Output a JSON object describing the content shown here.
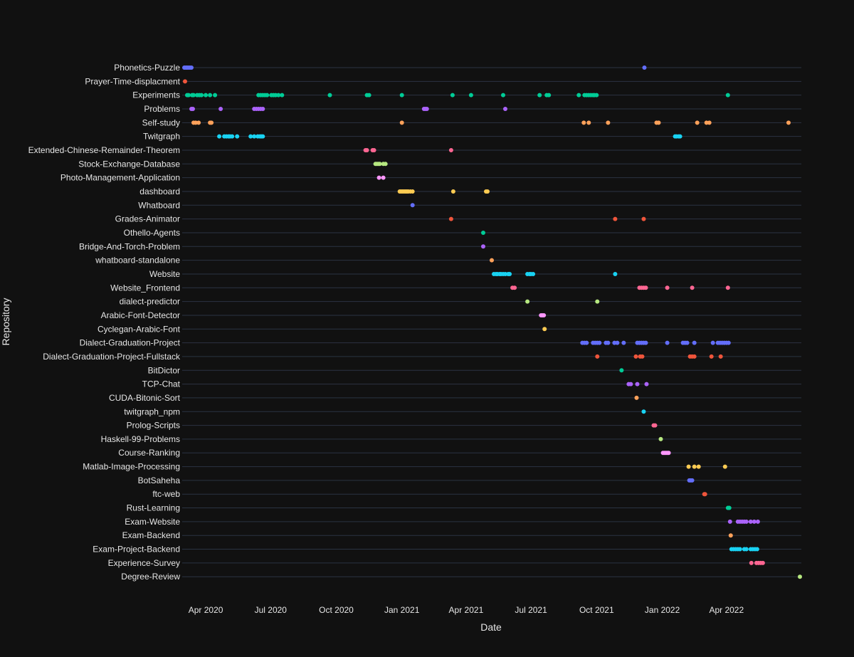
{
  "chart_data": {
    "type": "scatter",
    "xlabel": "Date",
    "ylabel": "Repository",
    "xlim": [
      "2020-02-28",
      "2022-07-15"
    ],
    "x_ticks": [
      {
        "date": "2020-04-01",
        "label": "Apr 2020"
      },
      {
        "date": "2020-07-01",
        "label": "Jul 2020"
      },
      {
        "date": "2020-10-01",
        "label": "Oct 2020"
      },
      {
        "date": "2021-01-01",
        "label": "Jan 2021"
      },
      {
        "date": "2021-04-01",
        "label": "Apr 2021"
      },
      {
        "date": "2021-07-01",
        "label": "Jul 2021"
      },
      {
        "date": "2021-10-01",
        "label": "Oct 2021"
      },
      {
        "date": "2022-01-01",
        "label": "Jan 2022"
      },
      {
        "date": "2022-04-01",
        "label": "Apr 2022"
      }
    ],
    "grid": true,
    "legend": "none",
    "palette": [
      "#636efa",
      "#ef553b",
      "#00cc96",
      "#ab63fa",
      "#ffa15a",
      "#19d3f3",
      "#ff6692",
      "#b6e880",
      "#ff97ff",
      "#fecb52"
    ],
    "series": [
      {
        "name": "Phonetics-Puzzle",
        "x": [
          "2020-03-02",
          "2020-03-03",
          "2020-03-05",
          "2020-03-06",
          "2020-03-08",
          "2020-03-10",
          "2020-03-12",
          "2021-12-07"
        ]
      },
      {
        "name": "Prayer-Time-displacment",
        "x": [
          "2020-03-03"
        ]
      },
      {
        "name": "Experiments",
        "x": [
          "2020-03-06",
          "2020-03-08",
          "2020-03-13",
          "2020-03-15",
          "2020-03-20",
          "2020-03-23",
          "2020-03-26",
          "2020-04-01",
          "2020-04-07",
          "2020-04-14",
          "2020-06-14",
          "2020-06-17",
          "2020-06-20",
          "2020-06-23",
          "2020-06-26",
          "2020-07-02",
          "2020-07-05",
          "2020-07-08",
          "2020-07-12",
          "2020-07-17",
          "2020-09-22",
          "2020-11-13",
          "2020-11-16",
          "2021-01-01",
          "2021-03-13",
          "2021-04-08",
          "2021-05-23",
          "2021-07-13",
          "2021-07-23",
          "2021-07-26",
          "2021-09-06",
          "2021-09-14",
          "2021-09-17",
          "2021-09-20",
          "2021-09-23",
          "2021-09-26",
          "2021-09-28",
          "2021-10-01",
          "2022-04-03"
        ]
      },
      {
        "name": "Problems",
        "x": [
          "2020-03-12",
          "2020-03-14",
          "2020-04-22",
          "2020-06-08",
          "2020-06-11",
          "2020-06-14",
          "2020-06-17",
          "2020-06-20",
          "2021-02-01",
          "2021-02-03",
          "2021-02-05",
          "2021-05-26"
        ]
      },
      {
        "name": "Self-study",
        "x": [
          "2020-03-15",
          "2020-03-18",
          "2020-03-22",
          "2020-04-07",
          "2020-04-09",
          "2021-01-01",
          "2021-09-13",
          "2021-09-20",
          "2021-10-17",
          "2021-12-24",
          "2021-12-27",
          "2022-02-19",
          "2022-03-04",
          "2022-03-08",
          "2022-06-27"
        ]
      },
      {
        "name": "Twitgraph",
        "x": [
          "2020-04-20",
          "2020-04-27",
          "2020-04-30",
          "2020-05-03",
          "2020-05-05",
          "2020-05-08",
          "2020-05-15",
          "2020-06-03",
          "2020-06-08",
          "2020-06-13",
          "2020-06-16",
          "2020-06-18",
          "2020-06-20",
          "2022-01-19",
          "2022-01-21",
          "2022-01-24",
          "2022-01-26"
        ]
      },
      {
        "name": "Extended-Chinese-Remainder-Theorem",
        "x": [
          "2020-11-11",
          "2020-11-13",
          "2020-11-21",
          "2020-11-23",
          "2021-03-11"
        ]
      },
      {
        "name": "Stock-Exchange-Database",
        "x": [
          "2020-11-25",
          "2020-11-27",
          "2020-11-29",
          "2020-12-01",
          "2020-12-06",
          "2020-12-09"
        ]
      },
      {
        "name": "Photo-Management-Application",
        "x": [
          "2020-11-30",
          "2020-12-06"
        ]
      },
      {
        "name": "dashboard",
        "x": [
          "2020-12-29",
          "2020-12-31",
          "2021-01-02",
          "2021-01-04",
          "2021-01-06",
          "2021-01-08",
          "2021-01-10",
          "2021-01-13",
          "2021-01-16",
          "2021-03-14",
          "2021-04-29",
          "2021-05-01"
        ]
      },
      {
        "name": "Whatboard",
        "x": [
          "2021-01-16"
        ]
      },
      {
        "name": "Grades-Animator",
        "x": [
          "2021-03-11",
          "2021-10-27",
          "2021-12-06"
        ]
      },
      {
        "name": "Othello-Agents",
        "x": [
          "2021-04-25"
        ]
      },
      {
        "name": "Bridge-And-Torch-Problem",
        "x": [
          "2021-04-25"
        ]
      },
      {
        "name": "whatboard-standalone",
        "x": [
          "2021-05-07"
        ]
      },
      {
        "name": "Website",
        "x": [
          "2021-05-10",
          "2021-05-13",
          "2021-05-15",
          "2021-05-18",
          "2021-05-20",
          "2021-05-23",
          "2021-05-26",
          "2021-05-30",
          "2021-06-01",
          "2021-06-26",
          "2021-06-29",
          "2021-07-01",
          "2021-07-04",
          "2021-10-27"
        ]
      },
      {
        "name": "Website_Frontend",
        "x": [
          "2021-06-05",
          "2021-06-08",
          "2021-11-30",
          "2021-12-03",
          "2021-12-06",
          "2021-12-09",
          "2022-01-08",
          "2022-02-12",
          "2022-04-03"
        ]
      },
      {
        "name": "dialect-predictor",
        "x": [
          "2021-06-26",
          "2021-10-02"
        ]
      },
      {
        "name": "Arabic-Font-Detector",
        "x": [
          "2021-07-15",
          "2021-07-17",
          "2021-07-19"
        ]
      },
      {
        "name": "Cyclegan-Arabic-Font",
        "x": [
          "2021-07-20"
        ]
      },
      {
        "name": "Dialect-Graduation-Project",
        "x": [
          "2021-09-11",
          "2021-09-14",
          "2021-09-17",
          "2021-09-26",
          "2021-09-29",
          "2021-10-02",
          "2021-10-05",
          "2021-10-14",
          "2021-10-17",
          "2021-10-26",
          "2021-10-30",
          "2021-11-08",
          "2021-11-27",
          "2021-11-30",
          "2021-12-03",
          "2021-12-06",
          "2021-12-09",
          "2022-01-08",
          "2022-01-30",
          "2022-02-02",
          "2022-02-05",
          "2022-02-15",
          "2022-03-13",
          "2022-03-20",
          "2022-03-23",
          "2022-03-26",
          "2022-03-29",
          "2022-04-01",
          "2022-04-04"
        ]
      },
      {
        "name": "Dialect-Graduation-Project-Fullstack",
        "x": [
          "2021-10-02",
          "2021-11-25",
          "2021-12-01",
          "2021-12-04",
          "2022-02-09",
          "2022-02-12",
          "2022-02-15",
          "2022-03-11",
          "2022-03-24"
        ]
      },
      {
        "name": "BitDictor",
        "x": [
          "2021-11-05"
        ]
      },
      {
        "name": "TCP-Chat",
        "x": [
          "2021-11-15",
          "2021-11-18",
          "2021-11-27",
          "2021-12-10"
        ]
      },
      {
        "name": "CUDA-Bitonic-Sort",
        "x": [
          "2021-11-26"
        ]
      },
      {
        "name": "twitgraph_npm",
        "x": [
          "2021-12-06"
        ]
      },
      {
        "name": "Prolog-Scripts",
        "x": [
          "2021-12-20",
          "2021-12-22"
        ]
      },
      {
        "name": "Haskell-99-Problems",
        "x": [
          "2021-12-30"
        ]
      },
      {
        "name": "Course-Ranking",
        "x": [
          "2022-01-02",
          "2022-01-04",
          "2022-01-06",
          "2022-01-08",
          "2022-01-10"
        ]
      },
      {
        "name": "Matlab-Image-Processing",
        "x": [
          "2022-02-07",
          "2022-02-15",
          "2022-02-21",
          "2022-03-30"
        ]
      },
      {
        "name": "BotSaheha",
        "x": [
          "2022-02-08",
          "2022-02-10",
          "2022-02-12"
        ]
      },
      {
        "name": "ftc-web",
        "x": [
          "2022-03-01",
          "2022-03-02"
        ]
      },
      {
        "name": "Rust-Learning",
        "x": [
          "2022-04-03",
          "2022-04-05"
        ]
      },
      {
        "name": "Exam-Website",
        "x": [
          "2022-04-06",
          "2022-04-17",
          "2022-04-20",
          "2022-04-23",
          "2022-04-26",
          "2022-04-29",
          "2022-05-05",
          "2022-05-10",
          "2022-05-15"
        ]
      },
      {
        "name": "Exam-Backend",
        "x": [
          "2022-04-07"
        ]
      },
      {
        "name": "Exam-Project-Backend",
        "x": [
          "2022-04-08",
          "2022-04-11",
          "2022-04-14",
          "2022-04-17",
          "2022-04-20",
          "2022-04-26",
          "2022-04-29",
          "2022-05-05",
          "2022-05-08",
          "2022-05-11",
          "2022-05-14"
        ]
      },
      {
        "name": "Experience-Survey",
        "x": [
          "2022-05-06",
          "2022-05-13",
          "2022-05-16",
          "2022-05-19",
          "2022-05-22"
        ]
      },
      {
        "name": "Degree-Review",
        "x": [
          "2022-07-13"
        ]
      }
    ]
  }
}
